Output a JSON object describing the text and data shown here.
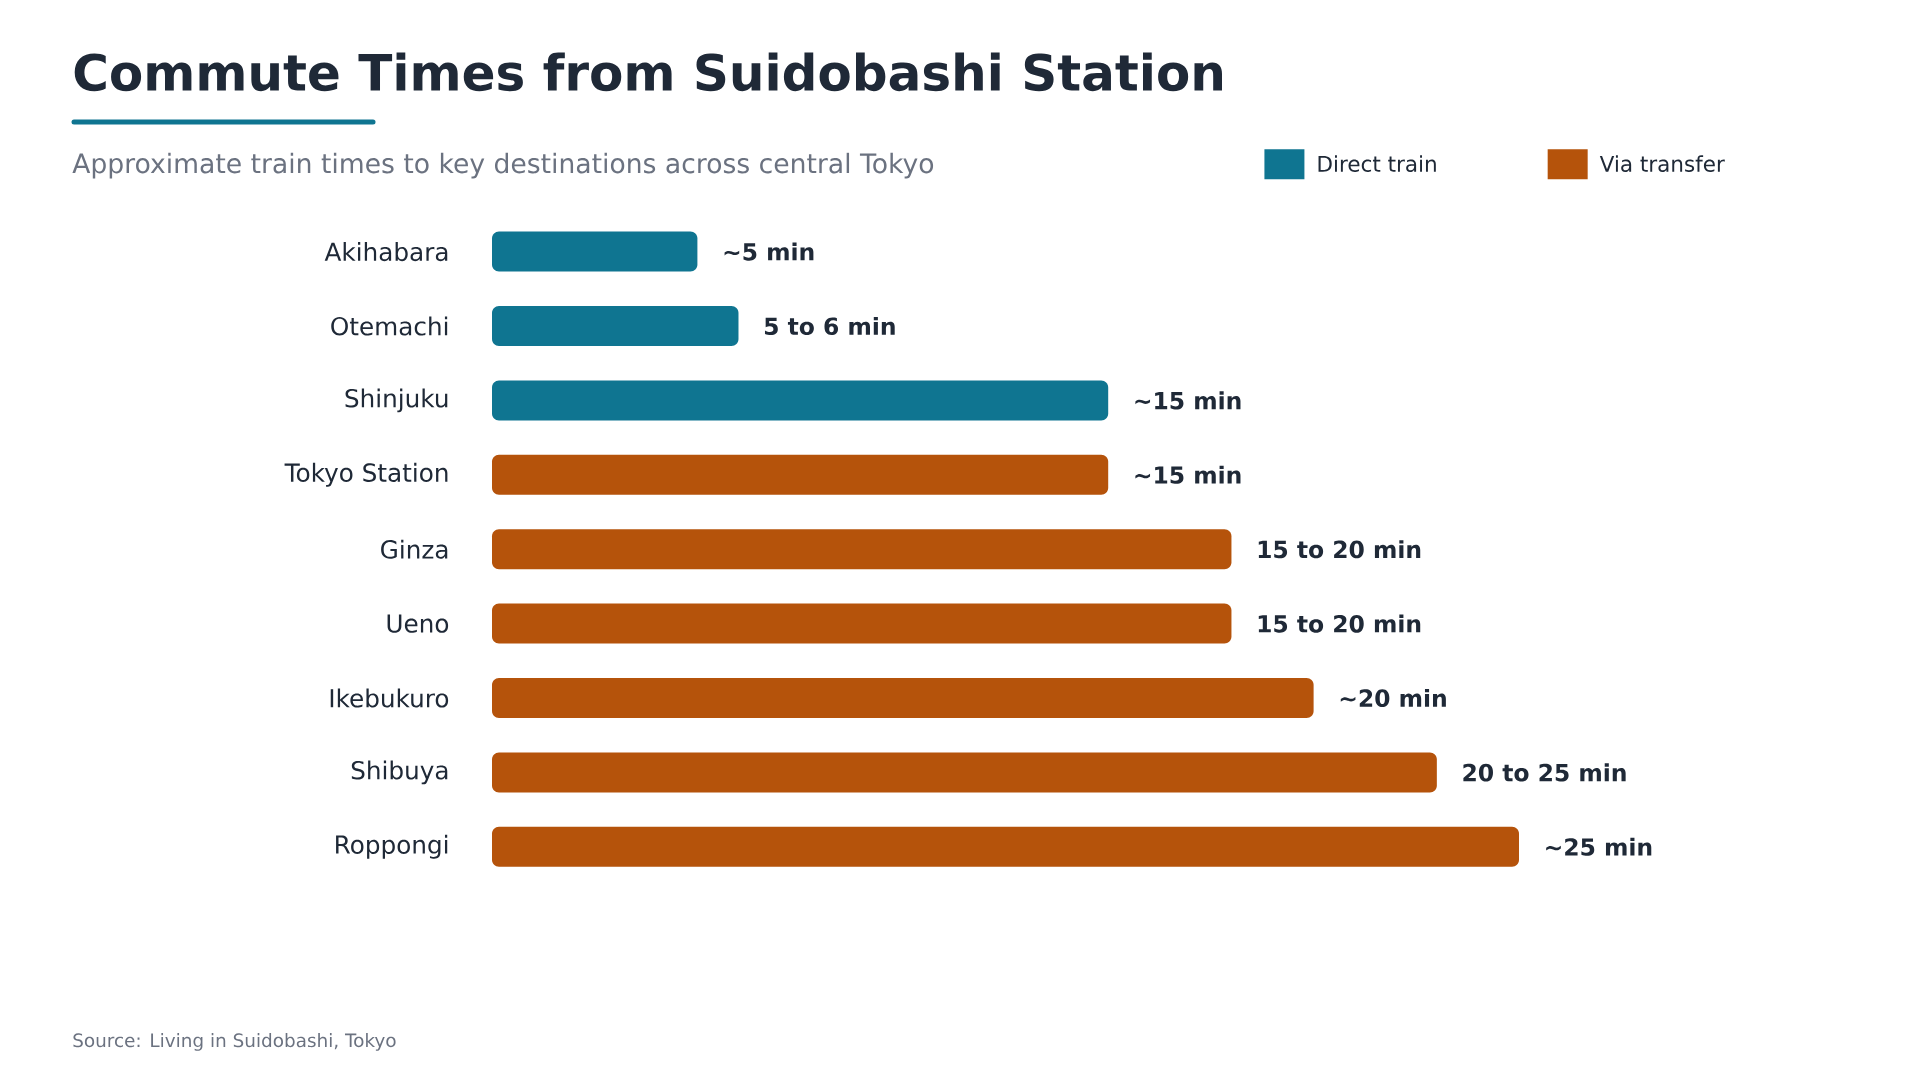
{
  "chart_data": {
    "type": "bar",
    "orientation": "horizontal",
    "title": "Commute Times from Suidobashi Station",
    "subtitle": "Approximate train times to key destinations across central Tokyo",
    "categories": [
      "Akihabara",
      "Otemachi",
      "Shinjuku",
      "Tokyo Station",
      "Ginza",
      "Ueno",
      "Ikebukuro",
      "Shibuya",
      "Roppongi"
    ],
    "series": [
      {
        "name": "Direct train",
        "color": "#0f7591",
        "values": [
          5,
          6,
          15,
          null,
          null,
          null,
          null,
          null,
          null
        ],
        "value_labels": [
          "~5 min",
          null,
          "~15 min",
          null,
          null,
          null,
          null,
          null,
          null
        ]
      },
      {
        "name": "Via transfer",
        "color": "#b5530b",
        "values": [
          null,
          null,
          null,
          15,
          18,
          18,
          20,
          23,
          25
        ],
        "value_labels": [
          null,
          null,
          null,
          "~15 min",
          null,
          null,
          "~20 min",
          null,
          "~25 min"
        ]
      }
    ],
    "legend": "top right",
    "annotations": [
      {
        "text": "5 to 6 min",
        "x": 6,
        "y": "Otemachi"
      },
      {
        "text": "15 to 20 min",
        "x": 18,
        "y": "Ginza"
      },
      {
        "text": "15 to 20 min",
        "x": 18,
        "y": "Ueno"
      },
      {
        "text": "20 to 25 min",
        "x": 23,
        "y": "Shibuya"
      },
      "Source: Living in Suidobashi, Tokyo"
    ]
  }
}
